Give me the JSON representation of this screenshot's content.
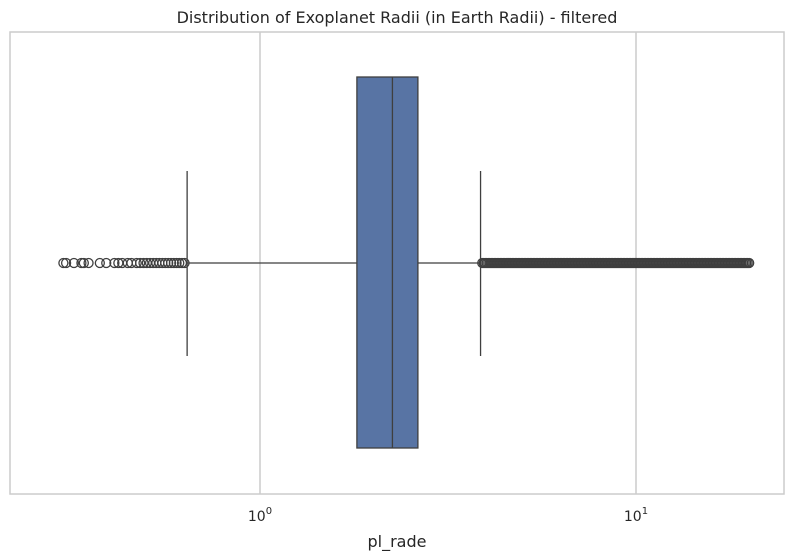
{
  "chart_data": {
    "type": "box",
    "title": "Distribution of Exoplanet Radii (in Earth Radii) - filtered",
    "xlabel": "pl_rade",
    "ylabel": "",
    "x_scale": "log",
    "xlim": [
      0.3,
      21.6
    ],
    "grid": true,
    "x_ticks": [
      {
        "value": 1,
        "base": "10",
        "exp": "0"
      },
      {
        "value": 10,
        "base": "10",
        "exp": "1"
      }
    ],
    "box": {
      "whisker_low": 0.64,
      "q1": 1.81,
      "median": 2.25,
      "q3": 2.63,
      "whisker_high": 3.86
    },
    "outliers_low": [
      0.3,
      0.305,
      0.32,
      0.335,
      0.34,
      0.35,
      0.375,
      0.39,
      0.41,
      0.42,
      0.43,
      0.445,
      0.455,
      0.47,
      0.48,
      0.49,
      0.5,
      0.51,
      0.52,
      0.53,
      0.54,
      0.55,
      0.56,
      0.57,
      0.58,
      0.59,
      0.6,
      0.61,
      0.62,
      0.63
    ],
    "outliers_high_range": [
      3.9,
      20.0
    ],
    "colors": {
      "box_fill": "#5874a4",
      "box_edge": "#3f3f3f",
      "grid": "#cccccc",
      "frame": "#cccccc"
    }
  }
}
